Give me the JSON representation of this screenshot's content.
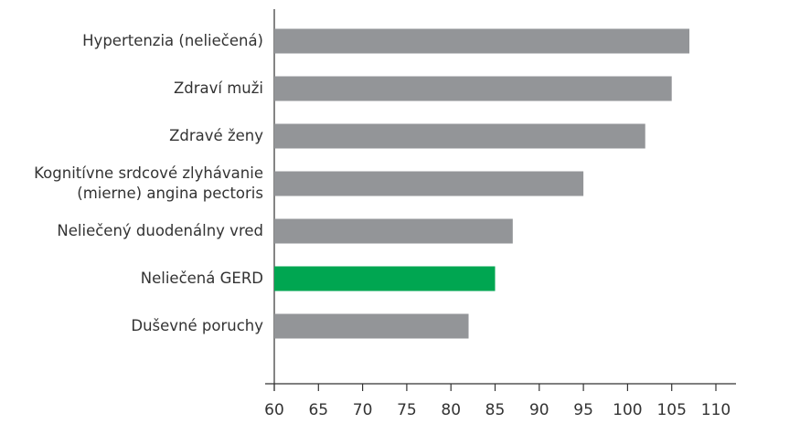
{
  "chart_data": {
    "type": "hbar",
    "categories": [
      "Hypertenzia (neliečená)",
      "Zdraví muži",
      "Zdravé ženy",
      "Kognitívne srdcové zlyhávanie (mierne) angina pectoris",
      "Neliečený duodenálny vred",
      "Neliečená GERD",
      "Duševné poruchy"
    ],
    "values": [
      107,
      105,
      102,
      95,
      87,
      85,
      82
    ],
    "colors": [
      "#939598",
      "#939598",
      "#939598",
      "#939598",
      "#939598",
      "#00a651",
      "#939598"
    ],
    "xlim": [
      60,
      110
    ],
    "xticks": [
      60,
      65,
      70,
      75,
      80,
      85,
      90,
      95,
      100,
      105,
      110
    ]
  }
}
